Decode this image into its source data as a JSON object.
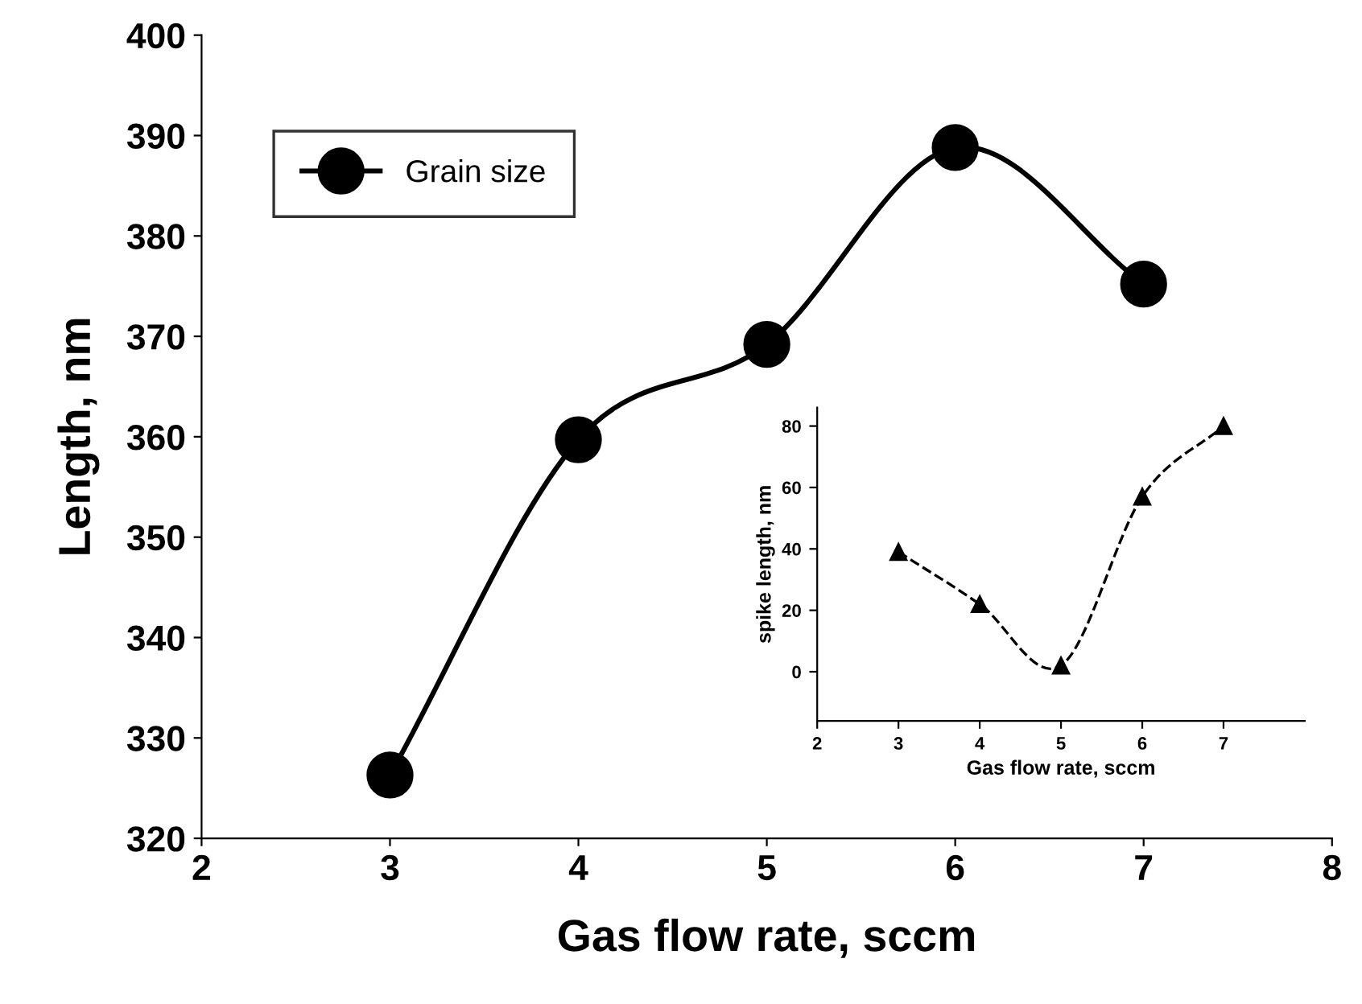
{
  "chart_data": [
    {
      "type": "line",
      "xlabel": "Gas flow rate, sccm",
      "ylabel": "Length, nm",
      "x": [
        3,
        4,
        5,
        6,
        7
      ],
      "series": [
        {
          "name": "Grain size",
          "color": "#000000",
          "values": [
            326.3,
            359.7,
            369.2,
            388.8,
            375.2
          ]
        }
      ],
      "xlim": [
        2,
        8
      ],
      "xticks": [
        2,
        3,
        4,
        5,
        6,
        7,
        8
      ],
      "ylim": [
        320,
        400
      ],
      "yticks": [
        320,
        330,
        340,
        350,
        360,
        370,
        380,
        390,
        400
      ],
      "marker": "circle",
      "line_style": "solid",
      "legend": "top left",
      "grid": false
    },
    {
      "type": "line",
      "xlabel": "Gas flow rate, sccm",
      "ylabel": "spike length, nm",
      "x": [
        3,
        4,
        5,
        6,
        7
      ],
      "series": [
        {
          "color": "#000000",
          "values": [
            39,
            22,
            2,
            57,
            80
          ]
        }
      ],
      "xlim": [
        2,
        8
      ],
      "xticks": [
        2,
        3,
        4,
        5,
        6,
        7
      ],
      "ylim": [
        -16,
        86
      ],
      "yticks": [
        0,
        20,
        40,
        60,
        80
      ],
      "marker": "triangle",
      "line_style": "dashed",
      "grid": false
    }
  ]
}
